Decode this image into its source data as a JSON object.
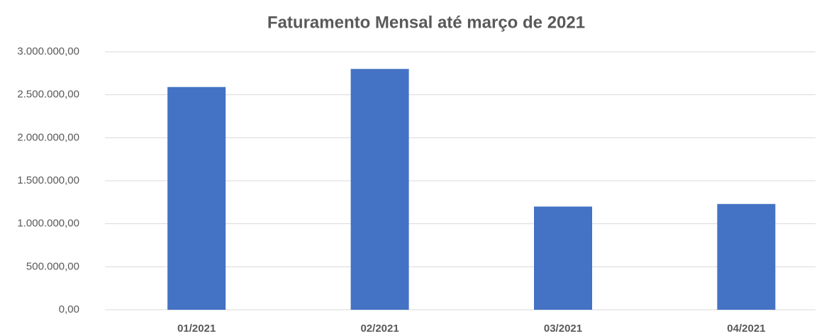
{
  "chart_data": {
    "type": "bar",
    "title": "Faturamento Mensal até março de 2021",
    "categories": [
      "01/2021",
      "02/2021",
      "03/2021",
      "04/2021"
    ],
    "values": [
      2590000,
      2800000,
      1200000,
      1230000
    ],
    "color": "#4472c4",
    "ylim": [
      0,
      3000000
    ],
    "yticks": [
      {
        "value": 0,
        "label": "0,00"
      },
      {
        "value": 500000,
        "label": "500.000,00"
      },
      {
        "value": 1000000,
        "label": "1.000.000,00"
      },
      {
        "value": 1500000,
        "label": "1.500.000,00"
      },
      {
        "value": 2000000,
        "label": "2.000.000,00"
      },
      {
        "value": 2500000,
        "label": "2.500.000,00"
      },
      {
        "value": 3000000,
        "label": "3.000.000,00"
      }
    ],
    "grid": true
  }
}
